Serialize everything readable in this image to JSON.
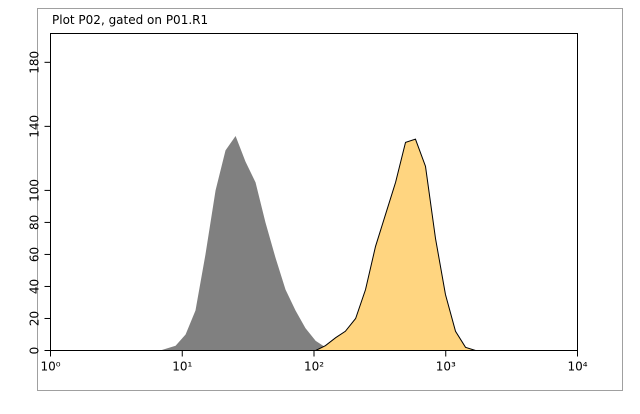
{
  "chart_data": {
    "type": "area",
    "title": "Plot P02, gated on P01.R1",
    "xscale": "log",
    "xlim": [
      1,
      10000
    ],
    "xticks": [
      {
        "value": 1,
        "label": "10⁰"
      },
      {
        "value": 10,
        "label": "10¹"
      },
      {
        "value": 100,
        "label": "10²"
      },
      {
        "value": 1000,
        "label": "10³"
      },
      {
        "value": 10000,
        "label": "10⁴"
      }
    ],
    "ylim": [
      0,
      198
    ],
    "yticks": [
      0,
      20,
      40,
      60,
      80,
      100,
      140,
      180
    ],
    "x": [
      6.8,
      8.9,
      10.6,
      12.6,
      15,
      17.9,
      21.3,
      25.4,
      30.2,
      36,
      42.8,
      51,
      60.8,
      72.4,
      86.1,
      103,
      122,
      146,
      173,
      207,
      246,
      293,
      349,
      416,
      495,
      589,
      702,
      836,
      995,
      1186,
      1413,
      1683
    ],
    "series": [
      {
        "color": "#808080",
        "values": [
          0,
          3,
          10,
          25,
          60,
          100,
          125,
          134,
          118,
          105,
          80,
          58,
          38,
          25,
          14,
          6,
          2,
          0,
          0,
          0,
          0,
          0,
          0,
          0,
          0,
          0,
          0,
          0,
          0,
          0,
          0,
          0
        ]
      },
      {
        "color": "#ffd580",
        "outline": "#000000",
        "values": [
          0,
          0,
          0,
          0,
          0,
          0,
          0,
          0,
          0,
          0,
          0,
          0,
          0,
          0,
          0,
          0,
          3,
          8,
          12,
          20,
          38,
          65,
          85,
          105,
          130,
          132,
          115,
          70,
          35,
          12,
          2,
          0
        ]
      }
    ]
  }
}
